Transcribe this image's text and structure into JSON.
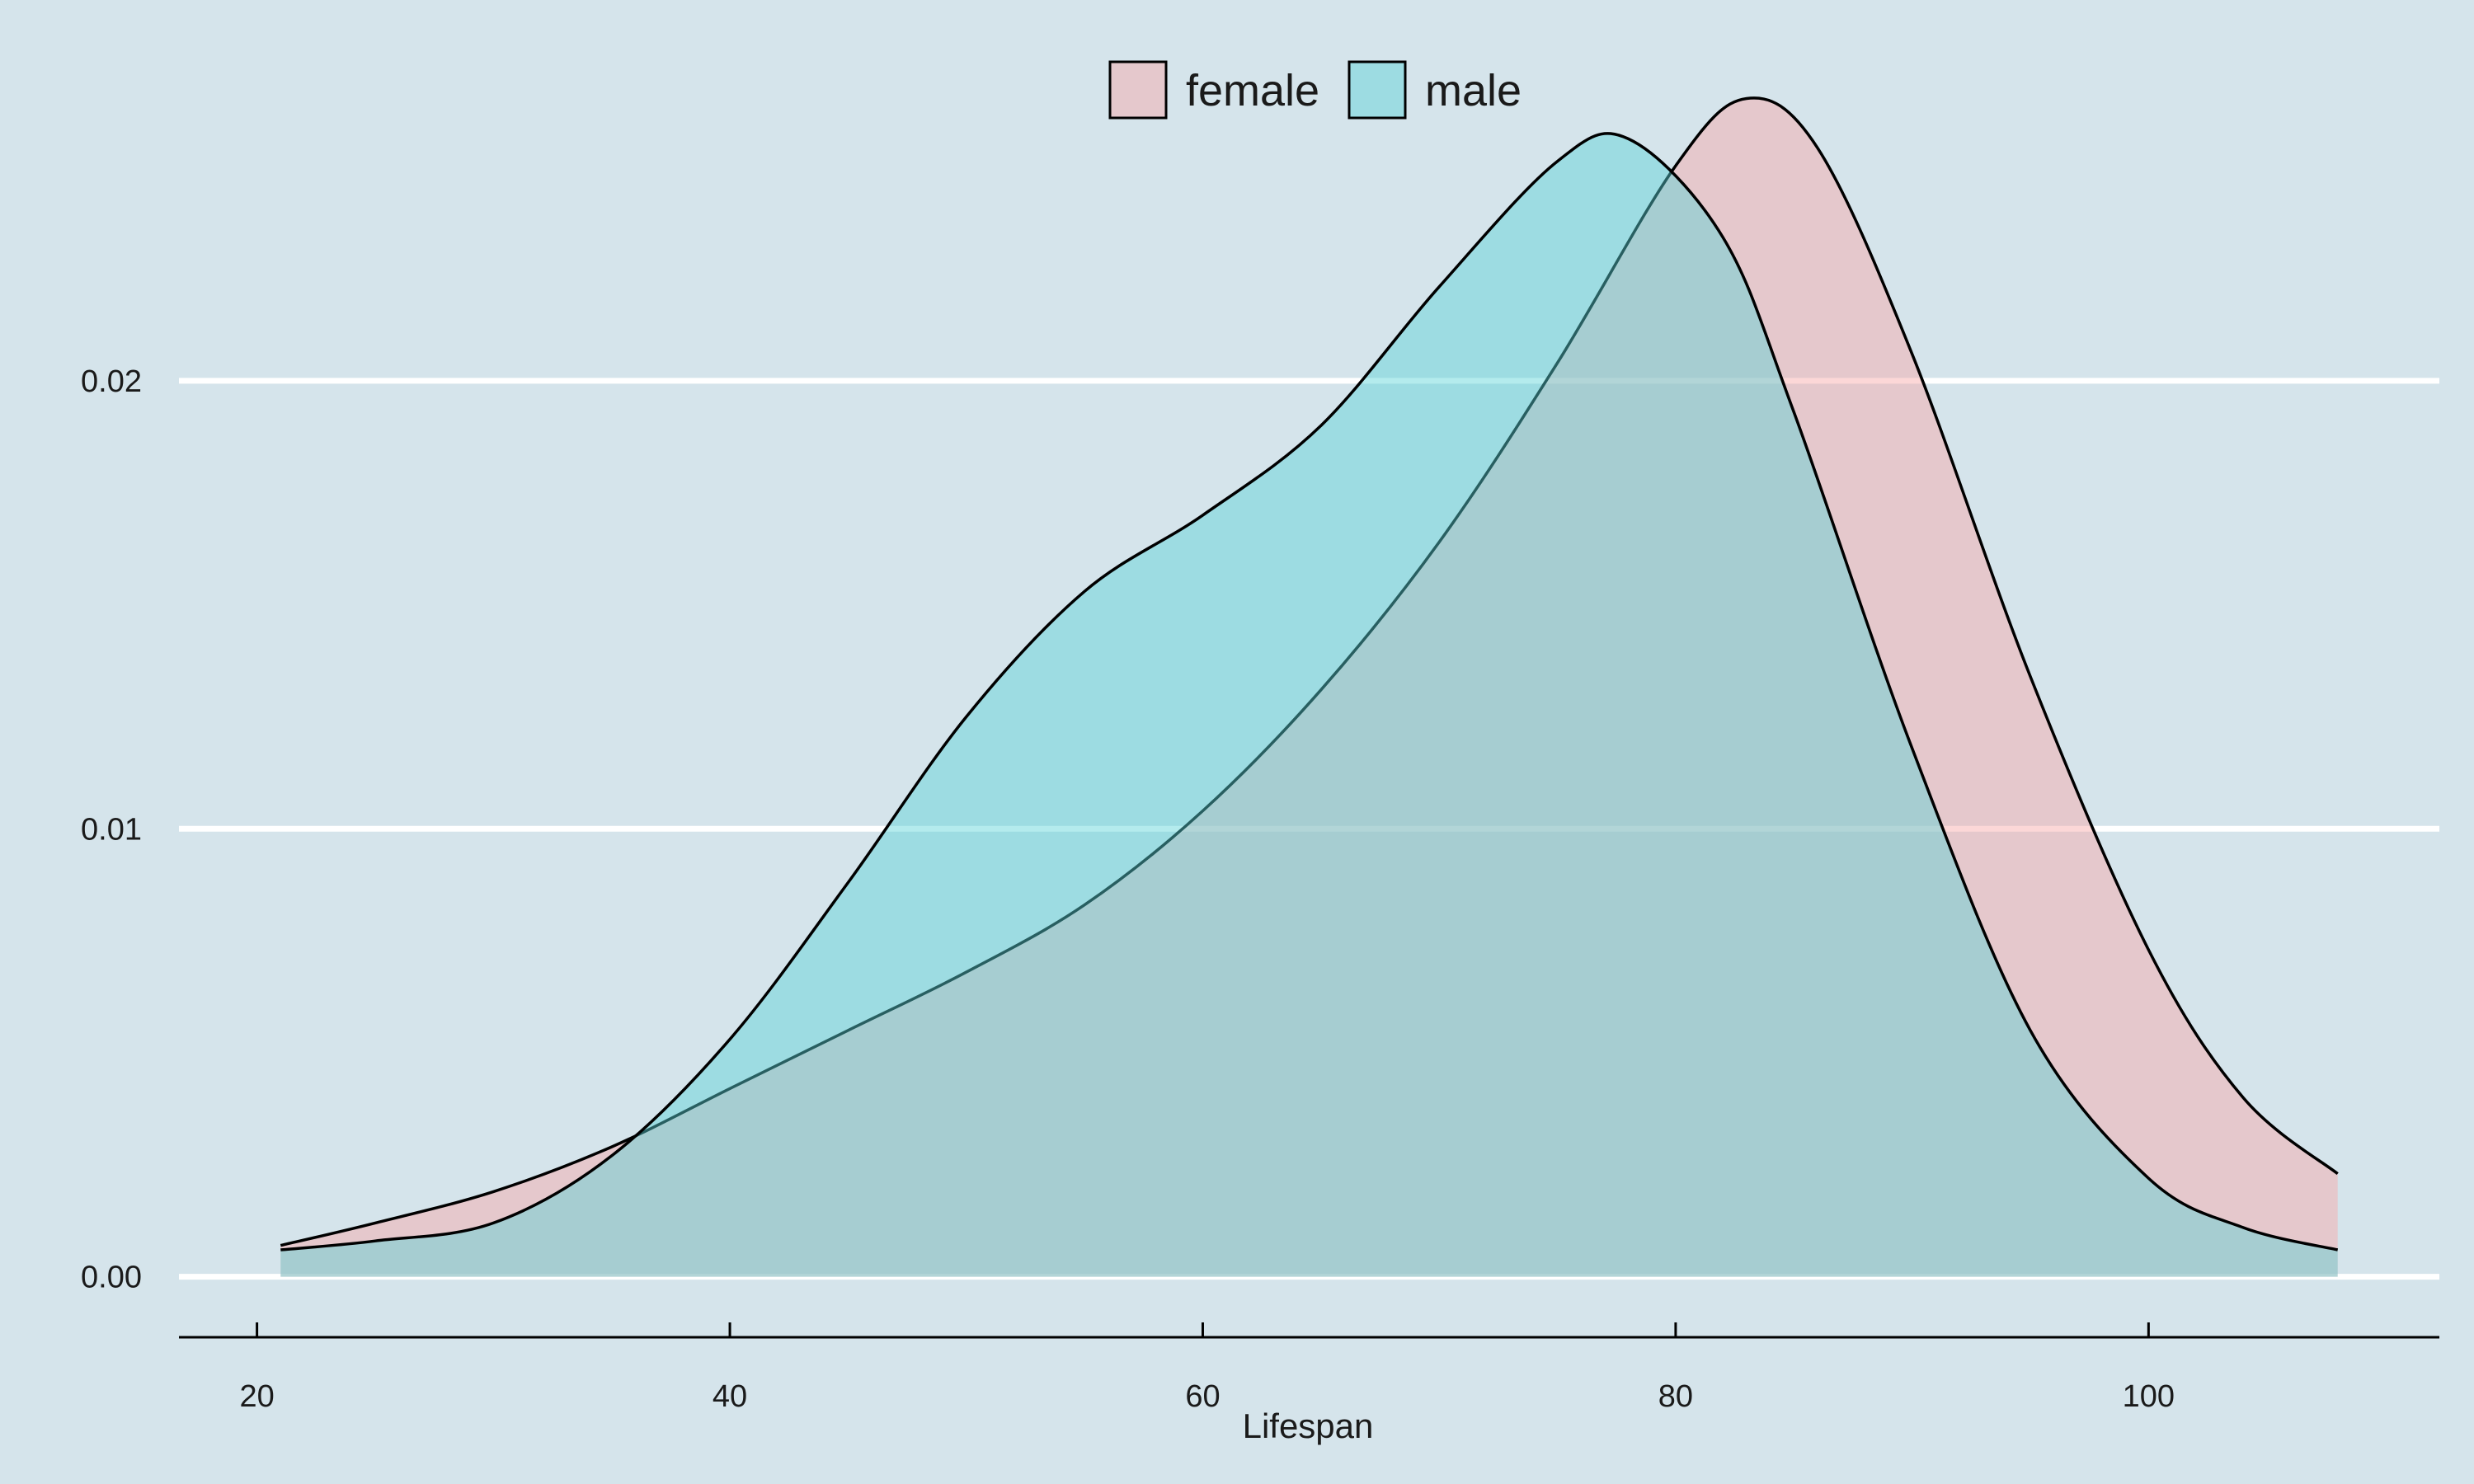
{
  "chart_data": {
    "type": "area",
    "title": "",
    "xlabel": "Lifespan",
    "ylabel": "",
    "xlim": [
      16.7,
      112.3
    ],
    "ylim": [
      -0.00135,
      0.0285
    ],
    "x_ticks": [
      20,
      40,
      60,
      80,
      100
    ],
    "x_tick_labels": [
      "20",
      "40",
      "60",
      "80",
      "100"
    ],
    "y_ticks": [
      0.0,
      0.01,
      0.02
    ],
    "y_tick_labels": [
      "0.00",
      "0.01",
      "0.02"
    ],
    "grid": "horizontal",
    "legend_position": "top",
    "background_color": "#d5e4eb",
    "series": [
      {
        "name": "female",
        "fill": "#f8a6a6",
        "fill_opacity": 0.45,
        "x": [
          21,
          25,
          30,
          35,
          40,
          45,
          50,
          55,
          60,
          65,
          70,
          75,
          80,
          83,
          86,
          90,
          95,
          100,
          104,
          108
        ],
        "y": [
          0.0007,
          0.0012,
          0.0019,
          0.0029,
          0.0042,
          0.0055,
          0.0068,
          0.0083,
          0.0104,
          0.0131,
          0.0164,
          0.0204,
          0.0248,
          0.0263,
          0.0252,
          0.0206,
          0.0134,
          0.0073,
          0.004,
          0.0023
        ]
      },
      {
        "name": "male",
        "fill": "#58d2d8",
        "fill_opacity": 0.45,
        "x": [
          21,
          25,
          30,
          35,
          40,
          45,
          50,
          55,
          60,
          65,
          70,
          75,
          78,
          82,
          85,
          90,
          95,
          100,
          104,
          108
        ],
        "y": [
          0.0006,
          0.0008,
          0.0012,
          0.0027,
          0.0053,
          0.0088,
          0.0125,
          0.0153,
          0.017,
          0.019,
          0.0221,
          0.0249,
          0.0254,
          0.0232,
          0.0193,
          0.0118,
          0.0055,
          0.0022,
          0.0011,
          0.0006
        ]
      }
    ]
  }
}
